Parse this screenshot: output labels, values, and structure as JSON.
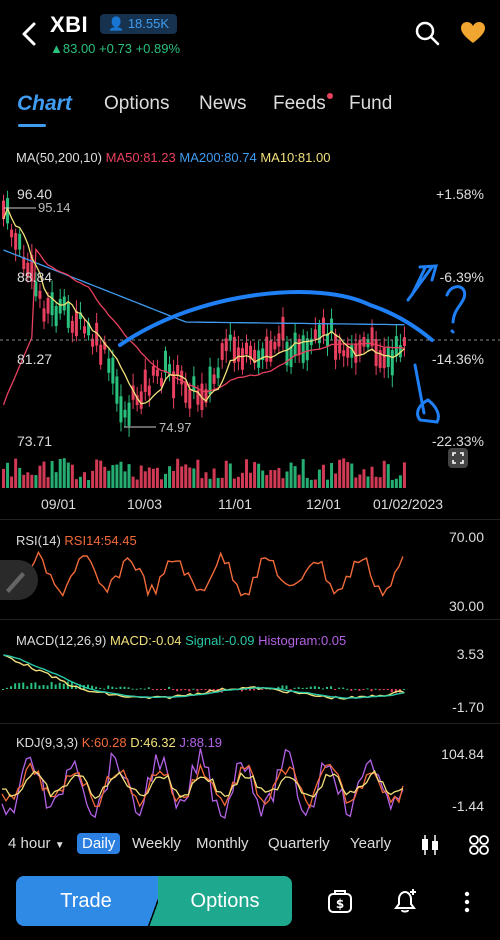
{
  "header": {
    "ticker": "XBI",
    "followers": "18.55K",
    "price": "83.00",
    "change": "+0.73",
    "change_pct": "+0.89%"
  },
  "tabs": [
    {
      "label": "Chart",
      "active": true
    },
    {
      "label": "Options"
    },
    {
      "label": "News"
    },
    {
      "label": "Feeds",
      "dot": true
    },
    {
      "label": "Fund"
    }
  ],
  "main_chart": {
    "legend_title": "MA(50,200,10)",
    "ma50": "MA50:81.23",
    "ma200": "MA200:80.74",
    "ma10": "MA10:81.00",
    "y_labels": [
      "96.40",
      "88.84",
      "81.27",
      "73.71"
    ],
    "pct_labels": [
      "+1.58%",
      "-6.39%",
      "-14.36%",
      "-22.33%"
    ],
    "high_marker": "95.14",
    "low_marker": "74.97",
    "x_labels": [
      "09/01",
      "10/03",
      "11/01",
      "12/01",
      "01/02/2023"
    ]
  },
  "rsi": {
    "title": "RSI(14)",
    "value": "RSI14:54.45",
    "upper": "70.00",
    "lower": "30.00"
  },
  "macd": {
    "title": "MACD(12,26,9)",
    "macd": "MACD:-0.04",
    "signal": "Signal:-0.09",
    "histogram": "Histogram:0.05",
    "upper": "3.53",
    "lower": "-1.70"
  },
  "kdj": {
    "title": "KDJ(9,3,3)",
    "k": "K:60.28",
    "d": "D:46.32",
    "j": "J:88.19",
    "upper": "104.84",
    "lower": "-1.44"
  },
  "timeframes": [
    {
      "label": "4 hour",
      "dropdown": true
    },
    {
      "label": "Daily",
      "active": true
    },
    {
      "label": "Weekly"
    },
    {
      "label": "Monthly"
    },
    {
      "label": "Quarterly"
    },
    {
      "label": "Yearly"
    }
  ],
  "bottom": {
    "trade": "Trade",
    "options": "Options"
  },
  "colors": {
    "up": "#2ac07e",
    "down": "#e8405e",
    "accent": "#3f9cf0",
    "ma50": "#e8405e",
    "ma200": "#3f9cf0",
    "ma10": "#f2e07a"
  },
  "icons": [
    "back-icon",
    "search-icon",
    "heart-icon",
    "candle-style-icon",
    "grid-icon",
    "cash-icon",
    "alert-bell-icon",
    "more-icon"
  ]
}
